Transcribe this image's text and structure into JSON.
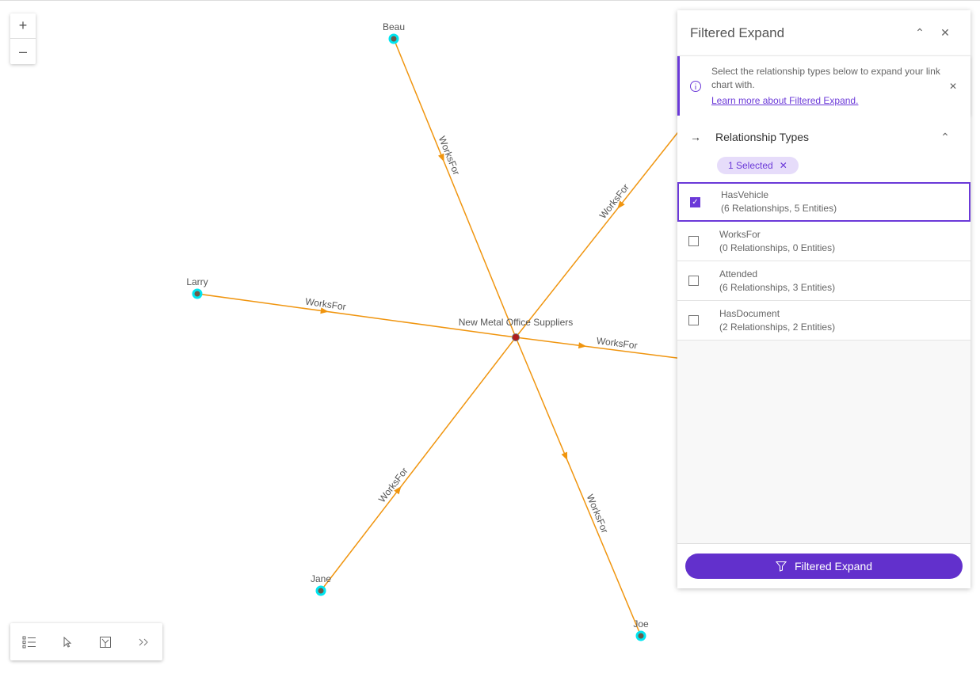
{
  "graph": {
    "center": {
      "label": "New Metal Office Suppliers",
      "color": "#b01c1c"
    },
    "nodes": [
      {
        "label": "Beau"
      },
      {
        "label": "Larry"
      },
      {
        "label": "Jane"
      },
      {
        "label": "Joe"
      },
      {
        "label": ""
      },
      {
        "label": ""
      }
    ],
    "edge_label": "WorksFor",
    "edge_color": "#f0950f",
    "node_color": "#00e5f0"
  },
  "zoom": {
    "in": "+",
    "out": "–"
  },
  "panel": {
    "title": "Filtered Expand",
    "notice_text": "Select the relationship types below to expand your link chart with.",
    "notice_link": "Learn more about Filtered Expand.",
    "section_title": "Relationship Types",
    "chip": "1 Selected",
    "items": [
      {
        "name": "HasVehicle",
        "detail": "(6 Relationships, 5 Entities)",
        "checked": true
      },
      {
        "name": "WorksFor",
        "detail": "(0 Relationships, 0 Entities)",
        "checked": false
      },
      {
        "name": "Attended",
        "detail": "(6 Relationships, 3 Entities)",
        "checked": false
      },
      {
        "name": "HasDocument",
        "detail": "(2 Relationships, 2 Entities)",
        "checked": false
      }
    ],
    "button": "Filtered Expand",
    "accent": "#6b39d8"
  }
}
